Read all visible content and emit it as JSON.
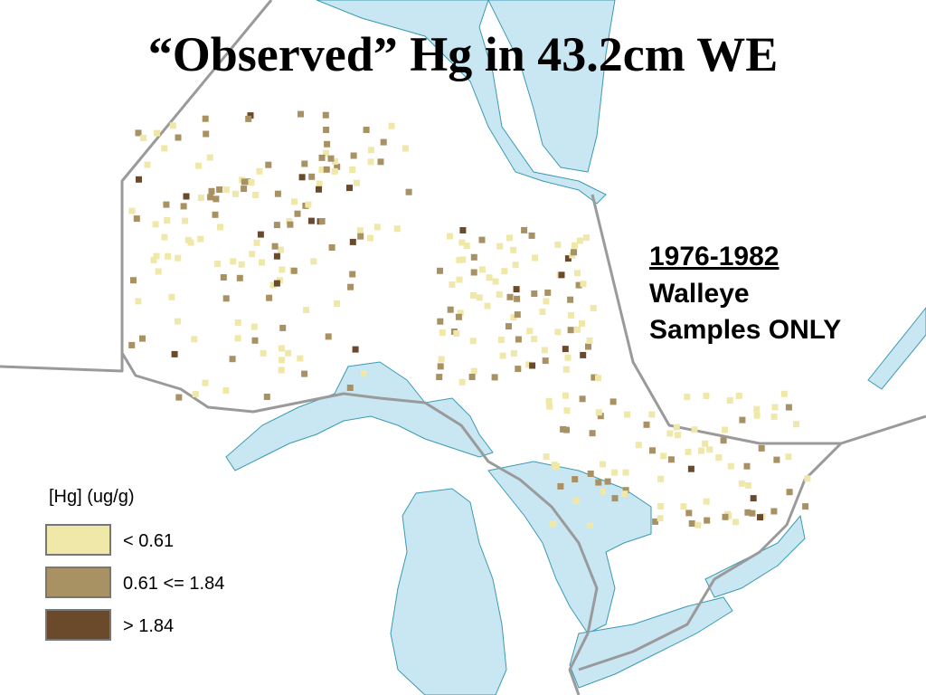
{
  "title": "“Observed” Hg in 43.2cm WE",
  "annotation": {
    "years": "1976-1982",
    "lines": [
      "Walleye",
      "Samples ONLY"
    ]
  },
  "legend": {
    "title": "[Hg] (ug/g)",
    "items": [
      {
        "label": "< 0.61",
        "color": "#efe8a9"
      },
      {
        "label": "0.61 <= 1.84",
        "color": "#a89163"
      },
      {
        "label": "> 1.84",
        "color": "#6b4a2c"
      }
    ]
  }
}
